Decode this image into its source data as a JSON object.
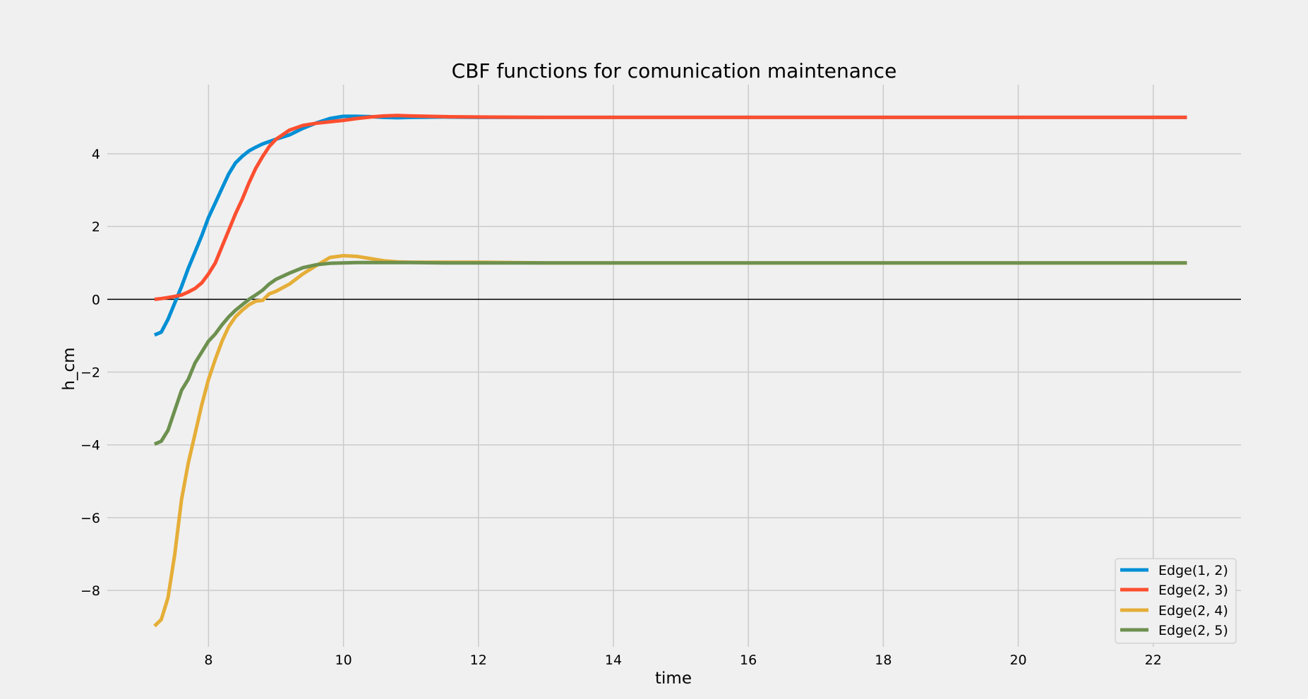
{
  "chart_data": {
    "type": "line",
    "title": "CBF functions for comunication maintenance",
    "xlabel": "time",
    "ylabel": "h_cm",
    "xlim": [
      6.5,
      23.3
    ],
    "ylim": [
      -9.55,
      5.9
    ],
    "xticks": [
      8,
      10,
      12,
      14,
      16,
      18,
      20,
      22
    ],
    "yticks": [
      4,
      2,
      0,
      -2,
      -4,
      -6,
      -8
    ],
    "ytick_labels": [
      "4",
      "2",
      "0",
      "−2",
      "−4",
      "−6",
      "−8"
    ],
    "grid": true,
    "reference_line_y": 0,
    "legend_position": "lower-right",
    "series": [
      {
        "name": "Edge(1, 2)",
        "color": "#008fd5",
        "x": [
          7.2,
          7.3,
          7.4,
          7.5,
          7.6,
          7.7,
          7.8,
          7.9,
          8.0,
          8.1,
          8.2,
          8.3,
          8.4,
          8.5,
          8.6,
          8.7,
          8.8,
          9.0,
          9.2,
          9.4,
          9.6,
          9.8,
          10.0,
          10.2,
          10.4,
          10.6,
          10.8,
          11.0,
          11.5,
          12.0,
          13.0,
          14.0,
          16.0,
          18.0,
          20.0,
          22.5
        ],
        "y": [
          -0.98,
          -0.9,
          -0.55,
          -0.1,
          0.35,
          0.85,
          1.3,
          1.75,
          2.25,
          2.65,
          3.05,
          3.45,
          3.75,
          3.93,
          4.08,
          4.18,
          4.27,
          4.4,
          4.52,
          4.7,
          4.85,
          4.97,
          5.03,
          5.03,
          5.02,
          5.0,
          4.99,
          5.0,
          5.01,
          5.0,
          5.0,
          5.0,
          5.0,
          5.0,
          5.0,
          5.0
        ]
      },
      {
        "name": "Edge(2, 3)",
        "color": "#fc4f30",
        "x": [
          7.2,
          7.3,
          7.4,
          7.5,
          7.6,
          7.7,
          7.8,
          7.9,
          8.0,
          8.1,
          8.2,
          8.3,
          8.4,
          8.5,
          8.6,
          8.7,
          8.8,
          8.9,
          9.0,
          9.2,
          9.4,
          9.6,
          9.8,
          10.0,
          10.2,
          10.4,
          10.6,
          10.8,
          11.0,
          11.5,
          12.0,
          13.0,
          14.0,
          16.0,
          18.0,
          20.0,
          22.5
        ],
        "y": [
          0.0,
          0.02,
          0.05,
          0.08,
          0.12,
          0.2,
          0.3,
          0.45,
          0.7,
          1.0,
          1.45,
          1.9,
          2.35,
          2.75,
          3.2,
          3.6,
          3.92,
          4.2,
          4.4,
          4.65,
          4.78,
          4.84,
          4.88,
          4.92,
          4.97,
          5.01,
          5.04,
          5.05,
          5.04,
          5.02,
          5.01,
          5.0,
          5.0,
          5.0,
          5.0,
          5.0,
          5.0
        ]
      },
      {
        "name": "Edge(2, 4)",
        "color": "#e5ae38",
        "x": [
          7.2,
          7.3,
          7.4,
          7.5,
          7.6,
          7.7,
          7.8,
          7.9,
          8.0,
          8.1,
          8.2,
          8.3,
          8.4,
          8.5,
          8.6,
          8.7,
          8.8,
          8.9,
          9.0,
          9.2,
          9.4,
          9.6,
          9.8,
          10.0,
          10.2,
          10.4,
          10.6,
          10.8,
          11.0,
          11.5,
          12.0,
          13.0,
          14.0,
          16.0,
          18.0,
          20.0,
          22.5
        ],
        "y": [
          -8.98,
          -8.8,
          -8.2,
          -7.0,
          -5.5,
          -4.5,
          -3.7,
          -2.9,
          -2.2,
          -1.65,
          -1.15,
          -0.75,
          -0.48,
          -0.3,
          -0.15,
          -0.05,
          -0.03,
          0.15,
          0.22,
          0.42,
          0.7,
          0.93,
          1.15,
          1.2,
          1.18,
          1.12,
          1.06,
          1.03,
          1.02,
          1.02,
          1.02,
          1.0,
          1.0,
          1.0,
          1.0,
          1.0,
          1.0
        ]
      },
      {
        "name": "Edge(2, 5)",
        "color": "#6d904f",
        "x": [
          7.2,
          7.3,
          7.4,
          7.5,
          7.6,
          7.7,
          7.8,
          7.9,
          8.0,
          8.1,
          8.2,
          8.3,
          8.4,
          8.5,
          8.6,
          8.7,
          8.8,
          8.9,
          9.0,
          9.2,
          9.4,
          9.6,
          9.8,
          10.0,
          10.2,
          10.5,
          11.0,
          11.5,
          12.0,
          13.0,
          14.0,
          16.0,
          18.0,
          20.0,
          22.5
        ],
        "y": [
          -3.98,
          -3.9,
          -3.6,
          -3.05,
          -2.5,
          -2.2,
          -1.75,
          -1.45,
          -1.15,
          -0.95,
          -0.7,
          -0.48,
          -0.3,
          -0.15,
          0.0,
          0.12,
          0.25,
          0.42,
          0.55,
          0.72,
          0.87,
          0.95,
          0.99,
          1.0,
          1.01,
          1.01,
          1.01,
          1.0,
          1.0,
          1.0,
          1.0,
          1.0,
          1.0,
          1.0,
          1.0
        ]
      }
    ]
  }
}
